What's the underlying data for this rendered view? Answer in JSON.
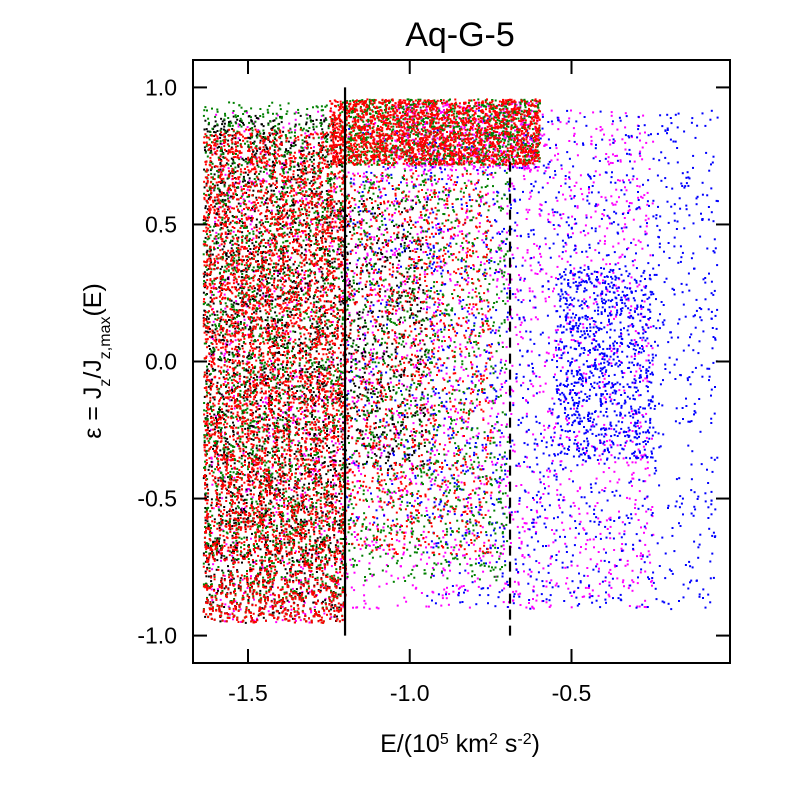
{
  "chart_data": {
    "type": "scatter",
    "title": "Aq-G-5",
    "xlabel": {
      "parts": [
        {
          "text": "E/(10",
          "shift": "none"
        },
        {
          "text": "5",
          "shift": "super"
        },
        {
          "text": " km",
          "shift": "none"
        },
        {
          "text": "2",
          "shift": "super"
        },
        {
          "text": " s",
          "shift": "none"
        },
        {
          "text": "-2",
          "shift": "super"
        },
        {
          "text": ")",
          "shift": "none"
        }
      ]
    },
    "ylabel": {
      "parts": [
        {
          "text": "ε = J",
          "shift": "none"
        },
        {
          "text": "z",
          "shift": "sub"
        },
        {
          "text": "/J",
          "shift": "none"
        },
        {
          "text": "z,max",
          "shift": "sub"
        },
        {
          "text": "(E)",
          "shift": "none"
        }
      ]
    },
    "xlim": [
      -1.67,
      -0.01
    ],
    "ylim": [
      -1.1,
      1.1
    ],
    "x_ticks": [
      -1.5,
      -1.0,
      -0.5
    ],
    "x_tick_labels": [
      "-1.5",
      "-1.0",
      "-0.5"
    ],
    "y_ticks": [
      1.0,
      0.5,
      0.0,
      -0.5,
      -1.0
    ],
    "y_tick_labels": [
      "1.0",
      "0.5",
      "0.0",
      "-0.5",
      "-1.0"
    ],
    "grid": false,
    "legend": "none",
    "reference_lines": [
      {
        "x": -1.2,
        "y_range": [
          -1.0,
          1.0
        ],
        "style": "solid",
        "color": "#000000"
      },
      {
        "x": -0.69,
        "y_range": [
          -1.0,
          0.75
        ],
        "style": "dashed",
        "color": "#000000"
      }
    ],
    "series": [
      {
        "color": "#ff00ff",
        "count": 3200,
        "regions": [
          {
            "x": [
              -1.62,
              -1.2
            ],
            "y": [
              -0.95,
              0.92
            ],
            "weight": 0.25
          },
          {
            "x": [
              -1.2,
              -0.25
            ],
            "y": [
              -0.9,
              0.92
            ],
            "weight": 0.6
          },
          {
            "x": [
              -1.05,
              -0.6
            ],
            "y": [
              0.7,
              0.95
            ],
            "weight": 0.15
          }
        ]
      },
      {
        "color": "#0000ff",
        "count": 2600,
        "regions": [
          {
            "x": [
              -0.95,
              -0.05
            ],
            "y": [
              -0.9,
              0.92
            ],
            "weight": 0.6
          },
          {
            "x": [
              -0.55,
              -0.25
            ],
            "y": [
              -0.35,
              0.35
            ],
            "weight": 0.3
          },
          {
            "x": [
              -1.2,
              -0.9
            ],
            "y": [
              -0.6,
              0.9
            ],
            "weight": 0.1
          }
        ]
      },
      {
        "color": "#000000",
        "count": 3200,
        "regions": [
          {
            "x": [
              -1.64,
              -1.2
            ],
            "y": [
              -0.95,
              0.9
            ],
            "weight": 0.85
          },
          {
            "x": [
              -1.2,
              -0.95
            ],
            "y": [
              -0.4,
              0.6
            ],
            "weight": 0.15
          }
        ]
      },
      {
        "color": "#008000",
        "count": 4600,
        "regions": [
          {
            "x": [
              -1.64,
              -1.2
            ],
            "y": [
              -0.95,
              0.95
            ],
            "weight": 0.5
          },
          {
            "x": [
              -1.2,
              -0.6
            ],
            "y": [
              0.72,
              0.96
            ],
            "weight": 0.25
          },
          {
            "x": [
              -1.2,
              -0.7
            ],
            "y": [
              -0.8,
              0.7
            ],
            "weight": 0.25
          }
        ]
      },
      {
        "color": "#ff0000",
        "count": 7500,
        "regions": [
          {
            "x": [
              -1.64,
              -1.2
            ],
            "y": [
              -0.95,
              0.85
            ],
            "weight": 0.6
          },
          {
            "x": [
              -1.25,
              -0.6
            ],
            "y": [
              0.72,
              0.96
            ],
            "weight": 0.25
          },
          {
            "x": [
              -1.2,
              -0.75
            ],
            "y": [
              -0.7,
              0.7
            ],
            "weight": 0.15
          }
        ]
      }
    ]
  }
}
